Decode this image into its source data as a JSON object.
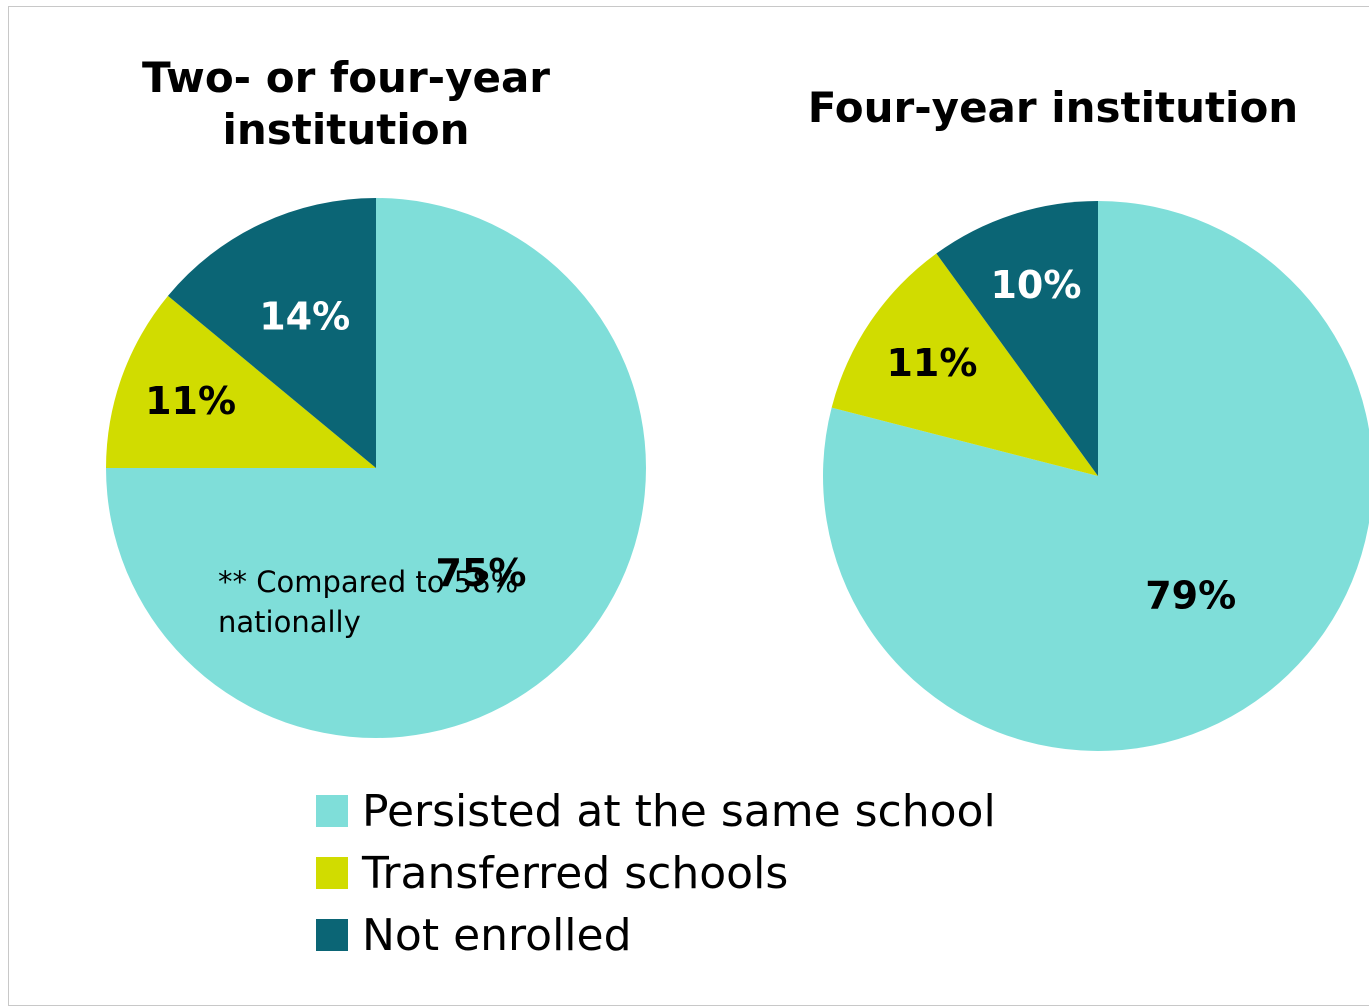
{
  "chart_data": [
    {
      "type": "pie",
      "title": "Two- or four-year institution",
      "categories": [
        "Persisted at the same school",
        "Transferred schools",
        "Not enrolled"
      ],
      "values": [
        75,
        11,
        14
      ],
      "labels": [
        "75%",
        "11%",
        "14%"
      ],
      "annotation": "** Compared to 58% nationally"
    },
    {
      "type": "pie",
      "title": "Four-year institution",
      "categories": [
        "Persisted at the same school",
        "Transferred schools",
        "Not enrolled"
      ],
      "values": [
        79,
        11,
        10
      ],
      "labels": [
        "79%",
        "11%",
        "10%"
      ]
    }
  ],
  "legend": {
    "placement": "bottom",
    "items": [
      {
        "label": "Persisted at the same school",
        "color": "#7fded9"
      },
      {
        "label": "Transferred schools",
        "color": "#d1dc00"
      },
      {
        "label": "Not enrolled",
        "color": "#0b6575"
      }
    ]
  },
  "colors": {
    "persisted": "#7fded9",
    "transferred": "#d1dc00",
    "not_enrolled": "#0b6575"
  }
}
